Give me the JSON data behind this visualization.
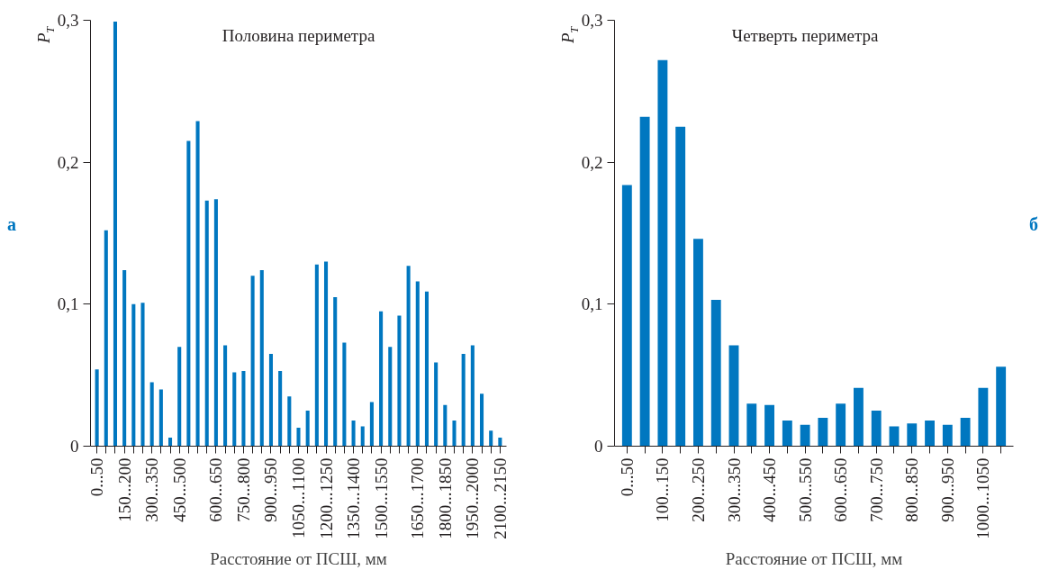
{
  "chart_data": [
    {
      "type": "bar",
      "title": "Половина периметра",
      "xlabel": "Расстояние от ПСШ, мм",
      "ylabel": "P$_{T}$",
      "categories": [
        "0...50",
        null,
        null,
        "150...200",
        null,
        null,
        "300...350",
        null,
        null,
        "450...500",
        null,
        null,
        null,
        "600...650",
        null,
        null,
        "750...800",
        null,
        null,
        "900...950",
        null,
        null,
        "1050...1100",
        null,
        null,
        "1200...1250",
        null,
        null,
        "1350...1400",
        null,
        null,
        "1500...1550",
        null,
        null,
        null,
        "1650...1700",
        null,
        null,
        "1800...1850",
        null,
        null,
        "1950...2000",
        null,
        null,
        "2100...2150"
      ],
      "values": [
        0.054,
        0.152,
        0.299,
        0.124,
        0.1,
        0.101,
        0.045,
        0.04,
        0.006,
        0.07,
        0.215,
        0.229,
        0.173,
        0.174,
        0.071,
        0.052,
        0.053,
        0.12,
        0.124,
        0.065,
        0.053,
        0.035,
        0.013,
        0.025,
        0.128,
        0.13,
        0.105,
        0.073,
        0.018,
        0.014,
        0.031,
        0.095,
        0.07,
        0.092,
        0.127,
        0.116,
        0.109,
        0.059,
        0.029,
        0.018,
        0.065,
        0.071,
        0.037,
        0.011,
        0.006
      ],
      "color": "#0077c0",
      "ylim": [
        0,
        0.3
      ],
      "yticks": [
        0,
        {
          "value": 0.1,
          "label": "0,1"
        },
        {
          "value": 0.2,
          "label": "0,2"
        },
        {
          "value": 0.3,
          "label": "0,3"
        }
      ],
      "grid": false,
      "annotations": [
        "а"
      ]
    },
    {
      "type": "bar",
      "title": "Четверть периметра",
      "xlabel": "Расстояние от ПСШ, мм",
      "ylabel": "P$_{T}$",
      "categories": [
        "0...50",
        null,
        "100...150",
        null,
        "200...250",
        null,
        "300...350",
        null,
        "400...450",
        null,
        "500...550",
        null,
        "600...650",
        null,
        "700...750",
        null,
        "800...850",
        null,
        "900...950",
        null,
        "1000...1050",
        null
      ],
      "values": [
        0.184,
        0.232,
        0.272,
        0.225,
        0.146,
        0.103,
        0.071,
        0.03,
        0.029,
        0.018,
        0.015,
        0.02,
        0.03,
        0.041,
        0.025,
        0.014,
        0.016,
        0.018,
        0.015,
        0.02,
        0.041,
        0.056
      ],
      "color": "#0077c0",
      "ylim": [
        0,
        0.3
      ],
      "yticks": [
        0,
        {
          "value": 0.1,
          "label": "0,1"
        },
        {
          "value": 0.2,
          "label": "0,2"
        },
        {
          "value": 0.3,
          "label": "0,3"
        }
      ],
      "grid": false,
      "annotations": [
        "б"
      ]
    }
  ]
}
